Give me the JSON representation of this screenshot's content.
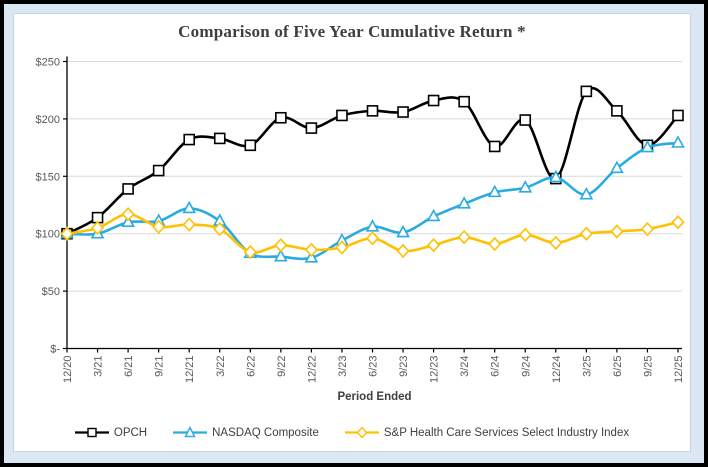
{
  "colors": {
    "background": "#DBE7F3",
    "panel": "#FFFFFF",
    "outer_border": "#000000",
    "grid": "#D9D9D9",
    "axis": "#000000",
    "tick_text": "#595959",
    "title_text": "#3F3F3F"
  },
  "chart_data": {
    "type": "line",
    "title": "Comparison of Five Year Cumulative Return *",
    "xlabel": "Period Ended",
    "ylabel": "",
    "ylim": [
      0,
      250
    ],
    "grid": "horizontal",
    "legend_position": "bottom",
    "line_style": "smooth",
    "y_tick_values": [
      0,
      50,
      100,
      150,
      200,
      250
    ],
    "y_tick_labels": [
      "$-",
      "$50",
      "$100",
      "$150",
      "$200",
      "$250"
    ],
    "categories": [
      "12/20",
      "3/21",
      "6/21",
      "9/21",
      "12/21",
      "3/22",
      "6/22",
      "9/22",
      "12/22",
      "3/23",
      "6/23",
      "9/23",
      "12/23",
      "3/24",
      "6/24",
      "9/24",
      "12/24",
      "3/25",
      "6/25",
      "9/25",
      "12/25"
    ],
    "series": [
      {
        "name": "OPCH",
        "color": "#000000",
        "marker": "square",
        "values": [
          100,
          114,
          139,
          155,
          182,
          183,
          177,
          201,
          192,
          203,
          207,
          206,
          216,
          215,
          176,
          199,
          148,
          224,
          207,
          177,
          203
        ]
      },
      {
        "name": "NASDAQ Composite",
        "color": "#29ABE2",
        "marker": "triangle",
        "values": [
          100,
          100,
          110,
          111,
          122,
          111,
          83,
          80,
          79,
          94,
          106,
          101,
          115,
          126,
          136,
          140,
          149,
          134,
          157,
          175,
          179
        ]
      },
      {
        "name": "S&P Health Care Services Select Industry Index",
        "color": "#FFC000",
        "marker": "diamond",
        "values": [
          100,
          105,
          117,
          106,
          108,
          104,
          84,
          90,
          86,
          88,
          96,
          85,
          90,
          97,
          91,
          99,
          92,
          100,
          102,
          104,
          110
        ]
      }
    ]
  }
}
